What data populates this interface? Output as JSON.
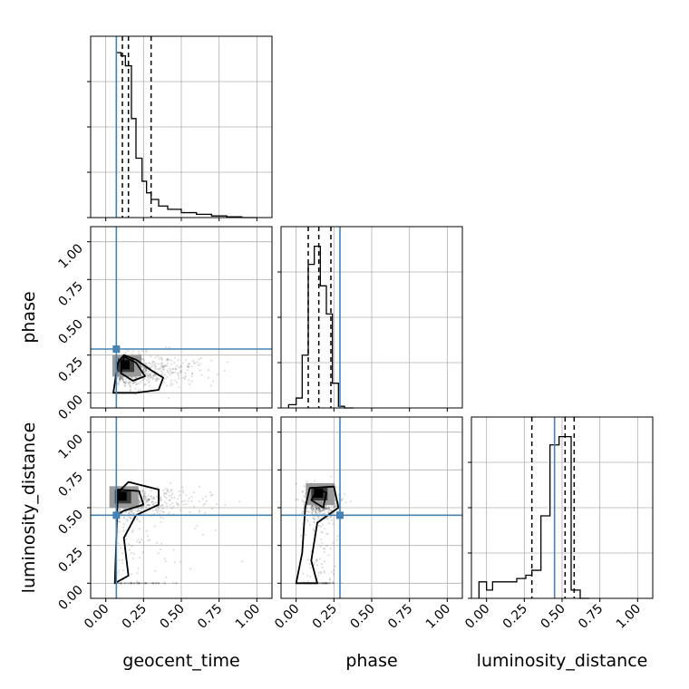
{
  "colors": {
    "truth": "#4682b4",
    "hist": "#000000",
    "grid": "#b0b0b0",
    "points": "#000000"
  },
  "chart_data": {
    "type": "corner",
    "parameters": [
      "geocent_time",
      "phase",
      "luminosity_distance"
    ],
    "axis_range": [
      -0.1,
      1.1
    ],
    "ticks": [
      0.0,
      0.25,
      0.5,
      0.75,
      1.0
    ],
    "tick_labels": [
      "0.00",
      "0.25",
      "0.50",
      "0.75",
      "1.00"
    ],
    "grid": true,
    "truths": {
      "geocent_time": 0.07,
      "phase": 0.29,
      "luminosity_distance": 0.45
    },
    "quantiles": {
      "geocent_time": [
        0.11,
        0.15,
        0.3
      ],
      "phase": [
        0.08,
        0.15,
        0.23
      ],
      "luminosity_distance": [
        0.3,
        0.52,
        0.58
      ]
    },
    "histograms": {
      "geocent_time": {
        "bin_edges": [
          0.07,
          0.1,
          0.13,
          0.17,
          0.2,
          0.24,
          0.27,
          0.3,
          0.35,
          0.41,
          0.5,
          0.6,
          0.7,
          0.8,
          0.9,
          1.0
        ],
        "counts": [
          1.0,
          0.98,
          0.92,
          0.6,
          0.36,
          0.22,
          0.15,
          0.11,
          0.07,
          0.05,
          0.03,
          0.02,
          0.01,
          0.005,
          0.0
        ]
      },
      "phase": {
        "bin_edges": [
          -0.05,
          0.0,
          0.04,
          0.08,
          0.12,
          0.16,
          0.2,
          0.24,
          0.28,
          0.32,
          0.38
        ],
        "counts": [
          0.02,
          0.06,
          0.32,
          0.87,
          0.98,
          0.74,
          0.57,
          0.15,
          0.01,
          0.0
        ]
      },
      "luminosity_distance": {
        "bin_edges": [
          -0.05,
          0.0,
          0.04,
          0.08,
          0.14,
          0.2,
          0.26,
          0.3,
          0.36,
          0.42,
          0.48,
          0.52,
          0.56,
          0.62,
          0.68
        ],
        "counts": [
          0.1,
          0.05,
          0.1,
          0.1,
          0.1,
          0.12,
          0.14,
          0.17,
          0.5,
          0.93,
          0.98,
          0.98,
          0.05,
          0.0
        ]
      }
    },
    "pairs": [
      {
        "x": "geocent_time",
        "y": "phase",
        "contours": [
          [
            [
              0.05,
              0.0
            ],
            [
              0.08,
              0.2
            ],
            [
              0.12,
              0.25
            ],
            [
              0.2,
              0.22
            ],
            [
              0.3,
              0.15
            ],
            [
              0.38,
              0.1
            ],
            [
              0.35,
              0.02
            ],
            [
              0.2,
              0.0
            ]
          ],
          [
            [
              0.1,
              0.13
            ],
            [
              0.12,
              0.24
            ],
            [
              0.2,
              0.2
            ],
            [
              0.26,
              0.11
            ],
            [
              0.18,
              0.08
            ]
          ]
        ],
        "core": [
          0.14,
          0.18
        ]
      },
      {
        "x": "geocent_time",
        "y": "luminosity_distance",
        "contours": [
          [
            [
              0.06,
              0.0
            ],
            [
              0.08,
              0.6
            ],
            [
              0.15,
              0.67
            ],
            [
              0.35,
              0.62
            ],
            [
              0.35,
              0.52
            ],
            [
              0.2,
              0.45
            ],
            [
              0.12,
              0.3
            ],
            [
              0.15,
              0.05
            ]
          ],
          [
            [
              0.07,
              0.45
            ],
            [
              0.08,
              0.62
            ],
            [
              0.22,
              0.61
            ],
            [
              0.25,
              0.52
            ],
            [
              0.12,
              0.48
            ]
          ]
        ],
        "core": [
          0.12,
          0.57
        ]
      },
      {
        "x": "phase",
        "y": "luminosity_distance",
        "contours": [
          [
            [
              0.0,
              0.0
            ],
            [
              0.04,
              0.2
            ],
            [
              0.06,
              0.5
            ],
            [
              0.09,
              0.63
            ],
            [
              0.25,
              0.64
            ],
            [
              0.28,
              0.5
            ],
            [
              0.14,
              0.4
            ],
            [
              0.1,
              0.15
            ],
            [
              0.14,
              0.0
            ]
          ],
          [
            [
              0.1,
              0.55
            ],
            [
              0.14,
              0.62
            ],
            [
              0.2,
              0.6
            ],
            [
              0.18,
              0.5
            ]
          ]
        ],
        "core": [
          0.16,
          0.59
        ]
      }
    ]
  }
}
